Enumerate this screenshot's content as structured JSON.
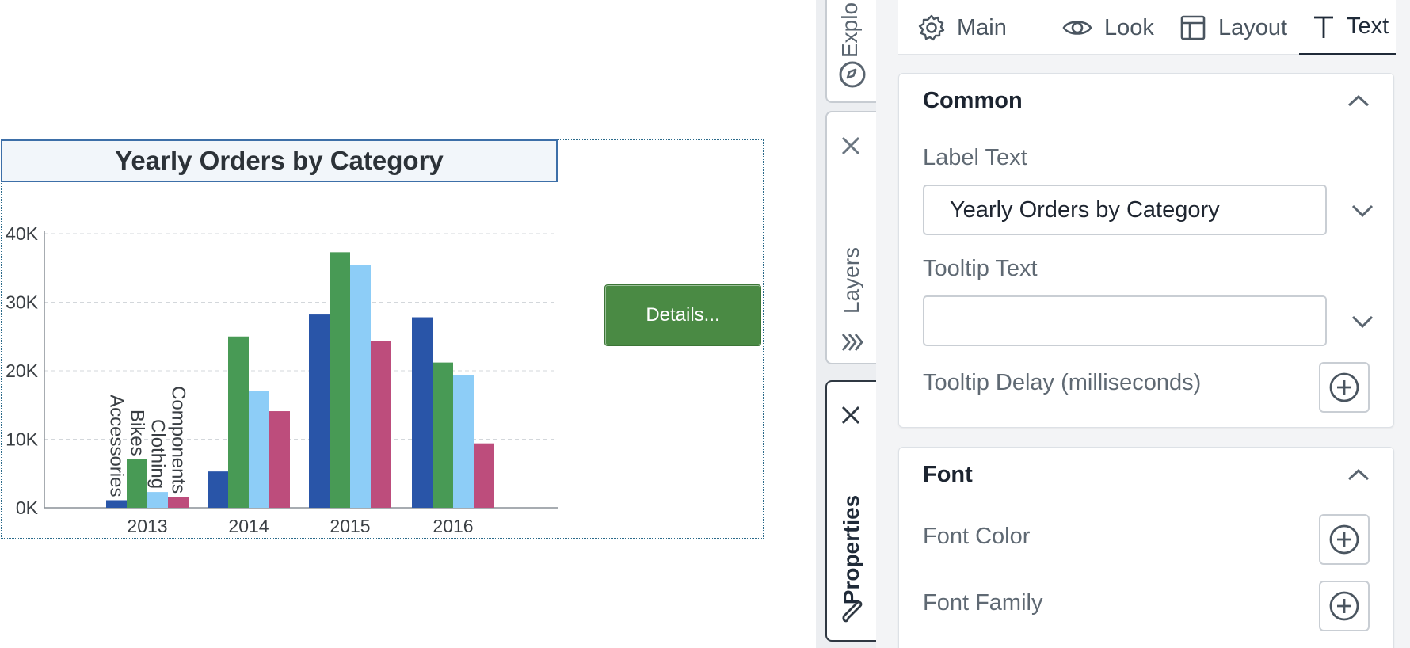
{
  "colors": {
    "accessories": "#2955a8",
    "bikes": "#489a55",
    "clothing": "#8dcdf7",
    "components": "#bd4d7c",
    "details_button": "#4a8a44"
  },
  "chart": {
    "title": "Yearly Orders by Category",
    "details_label": "Details..."
  },
  "chart_data": {
    "type": "bar",
    "title": "Yearly Orders by Category",
    "categories": [
      "2013",
      "2014",
      "2015",
      "2016"
    ],
    "y_ticks": [
      "0K",
      "10K",
      "20K",
      "30K",
      "40K"
    ],
    "ylim": [
      0,
      40000
    ],
    "grid": true,
    "series": [
      {
        "name": "Accessories",
        "values": [
          1100,
          5300,
          28200,
          27800
        ]
      },
      {
        "name": "Bikes",
        "values": [
          7100,
          25000,
          37300,
          21200
        ]
      },
      {
        "name": "Clothing",
        "values": [
          2300,
          17100,
          35400,
          19400
        ]
      },
      {
        "name": "Components",
        "values": [
          1600,
          14100,
          24300,
          9400
        ]
      }
    ]
  },
  "side_tabs": {
    "explore": "Explo",
    "layers": "Layers",
    "properties": "Properties"
  },
  "panel": {
    "tabs": [
      {
        "label": "Main",
        "icon": "gear-icon"
      },
      {
        "label": "Look",
        "icon": "eye-icon"
      },
      {
        "label": "Layout",
        "icon": "layout-icon"
      },
      {
        "label": "Text",
        "icon": "text-icon"
      }
    ],
    "active_tab": "Text",
    "common": {
      "title": "Common",
      "label_text_label": "Label Text",
      "label_text_value": "Yearly Orders by Category",
      "tooltip_text_label": "Tooltip Text",
      "tooltip_text_value": "",
      "tooltip_delay_label": "Tooltip Delay (milliseconds)"
    },
    "font": {
      "title": "Font",
      "font_color_label": "Font Color",
      "font_family_label": "Font Family"
    }
  }
}
